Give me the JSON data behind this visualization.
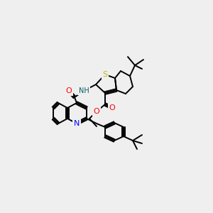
{
  "background_color": "#efefef",
  "bond_color": "#000000",
  "S_color": "#c8b400",
  "N_color": "#0000ff",
  "O_color": "#ff0000",
  "atoms": {
    "S": {
      "color": "#c8b400"
    },
    "N": {
      "color": "#0000ff"
    },
    "O": {
      "color": "#ff0000"
    },
    "C": {
      "color": "#000000"
    },
    "H": {
      "color": "#006060"
    }
  },
  "figsize": [
    3.0,
    3.0
  ],
  "dpi": 100
}
